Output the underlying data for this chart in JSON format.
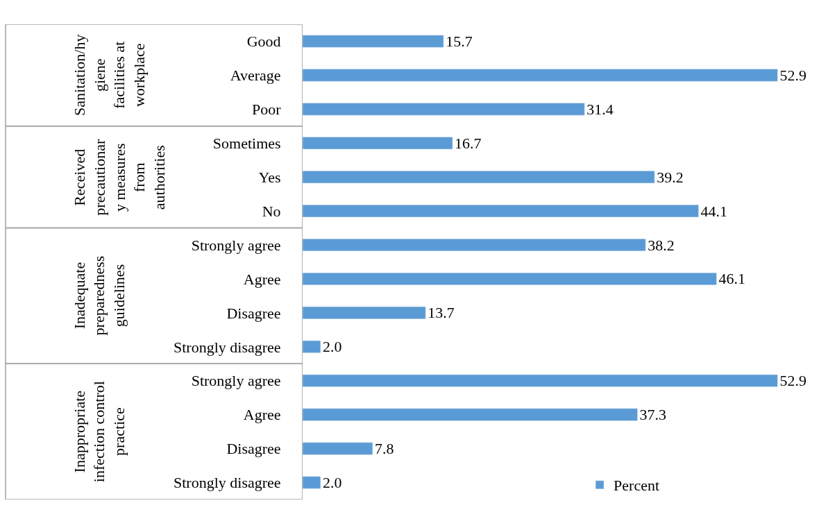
{
  "chart_data": {
    "type": "bar",
    "orientation": "horizontal",
    "legend": "bottom right",
    "tick_labels": "y",
    "categories": [
      "Good",
      "Average",
      "Poor",
      "Sometimes",
      "Yes",
      "No",
      "Strongly agree",
      "Agree",
      "Disagree",
      "Strongly disagree",
      "Strongly agree",
      "Agree",
      "Disagree",
      "Strongly disagree"
    ],
    "series": [
      {
        "name": "Percent",
        "color": "#5b9bd5",
        "values": [
          15.7,
          52.9,
          31.4,
          16.7,
          39.2,
          44.1,
          38.2,
          46.1,
          13.7,
          2.0,
          52.9,
          37.3,
          7.8,
          2.0
        ],
        "value_labels": [
          "15.7",
          "52.9",
          "31.4",
          "16.7",
          "39.2",
          "44.1",
          "38.2",
          "46.1",
          "13.7",
          "2.0",
          "52.9",
          "37.3",
          "7.8",
          "2.0"
        ]
      }
    ],
    "annotations": [
      "Sanitation/hygiene facilities at workplace",
      "Received precautionary measures from authorities",
      "Inadequate preparedness guidelines",
      "Inappropriate infection control practice"
    ]
  }
}
